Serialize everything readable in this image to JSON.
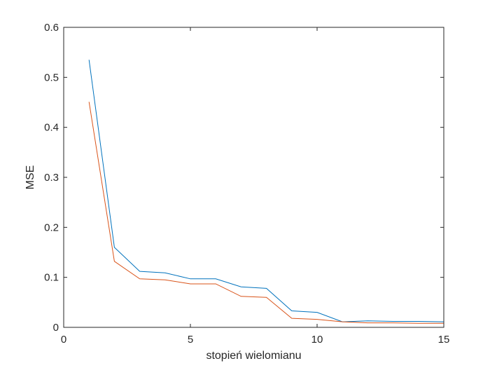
{
  "chart_data": {
    "type": "line",
    "title": "",
    "xlabel": "stopień wielomianu",
    "ylabel": "MSE",
    "xlim": [
      0,
      15
    ],
    "ylim": [
      0,
      0.6
    ],
    "xticks": [
      0,
      5,
      10,
      15
    ],
    "yticks": [
      0,
      0.1,
      0.2,
      0.3,
      0.4,
      0.5,
      0.6
    ],
    "xtick_labels": [
      "0",
      "5",
      "10",
      "15"
    ],
    "ytick_labels": [
      "0",
      "0.1",
      "0.2",
      "0.3",
      "0.4",
      "0.5",
      "0.6"
    ],
    "grid": false,
    "box": true,
    "x": [
      1,
      2,
      3,
      4,
      5,
      6,
      7,
      8,
      9,
      10,
      11,
      12,
      13,
      14,
      15
    ],
    "series": [
      {
        "color": "#0072BD",
        "values": [
          0.535,
          0.16,
          0.112,
          0.109,
          0.097,
          0.097,
          0.081,
          0.078,
          0.033,
          0.03,
          0.011,
          0.013,
          0.012,
          0.012,
          0.011
        ]
      },
      {
        "color": "#D95319",
        "values": [
          0.451,
          0.132,
          0.097,
          0.095,
          0.087,
          0.087,
          0.062,
          0.06,
          0.018,
          0.016,
          0.011,
          0.009,
          0.009,
          0.008,
          0.008
        ]
      }
    ]
  }
}
